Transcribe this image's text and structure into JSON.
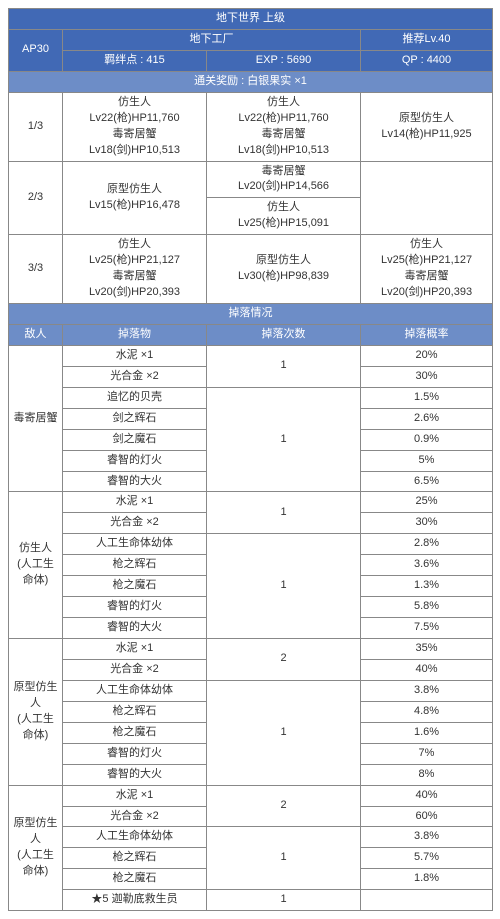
{
  "colors": {
    "header_bg": "#4169b5",
    "sub_bg": "#6d8dc7",
    "border": "#888"
  },
  "title": "地下世界 上级",
  "row2": {
    "ap": "AP30",
    "loc": "地下工厂",
    "rec": "推荐Lv.40"
  },
  "row3": {
    "bond": "羁绊点 : 415",
    "exp": "EXP : 5690",
    "qp": "QP : 4400"
  },
  "reward": "通关奖励 : 白银果实 ×1",
  "waves": [
    {
      "n": "1/3",
      "c1": "仿生人\nLv22(枪)HP11,760\n毒寄居蟹\nLv18(剑)HP10,513",
      "c2": "仿生人\nLv22(枪)HP11,760\n毒寄居蟹\nLv18(剑)HP10,513",
      "c3": "原型仿生人\nLv14(枪)HP11,925"
    },
    {
      "n": "2/3",
      "c1": "原型仿生人\nLv15(枪)HP16,478",
      "c2a": "毒寄居蟹\nLv20(剑)HP14,566",
      "c2b": "仿生人\nLv25(枪)HP15,091",
      "c3": ""
    },
    {
      "n": "3/3",
      "c1": "仿生人\nLv25(枪)HP21,127\n毒寄居蟹\nLv20(剑)HP20,393",
      "c2": "原型仿生人\nLv30(枪)HP98,839",
      "c3": "仿生人\nLv25(枪)HP21,127\n毒寄居蟹\nLv20(剑)HP20,393"
    }
  ],
  "drops_title": "掉落情况",
  "drops_hdr": {
    "enemy": "敌人",
    "item": "掉落物",
    "count": "掉落次数",
    "rate": "掉落概率"
  },
  "drops": [
    {
      "enemy": "毒寄居蟹",
      "g": [
        {
          "items": [
            "水泥 ×1",
            "光合金 ×2"
          ],
          "cnt": "1",
          "rates": [
            "20%",
            "30%"
          ]
        },
        {
          "items": [
            "追忆的贝壳",
            "剑之辉石",
            "剑之魔石",
            "睿智的灯火",
            "睿智的大火"
          ],
          "cnt": "1",
          "rates": [
            "1.5%",
            "2.6%",
            "0.9%",
            "5%",
            "6.5%"
          ]
        }
      ]
    },
    {
      "enemy": "仿生人\n(人工生命体)",
      "g": [
        {
          "items": [
            "水泥 ×1",
            "光合金 ×2"
          ],
          "cnt": "1",
          "rates": [
            "25%",
            "30%"
          ]
        },
        {
          "items": [
            "人工生命体幼体",
            "枪之辉石",
            "枪之魔石",
            "睿智的灯火",
            "睿智的大火"
          ],
          "cnt": "1",
          "rates": [
            "2.8%",
            "3.6%",
            "1.3%",
            "5.8%",
            "7.5%"
          ]
        }
      ]
    },
    {
      "enemy": "原型仿生人\n(人工生命体)",
      "g": [
        {
          "items": [
            "水泥 ×1",
            "光合金 ×2"
          ],
          "cnt": "2",
          "rates": [
            "35%",
            "40%"
          ]
        },
        {
          "items": [
            "人工生命体幼体",
            "枪之辉石",
            "枪之魔石",
            "睿智的灯火",
            "睿智的大火"
          ],
          "cnt": "1",
          "rates": [
            "3.8%",
            "4.8%",
            "1.6%",
            "7%",
            "8%"
          ]
        }
      ]
    },
    {
      "enemy": "原型仿生人\n(人工生命体)",
      "g": [
        {
          "items": [
            "水泥 ×1",
            "光合金 ×2"
          ],
          "cnt": "2",
          "rates": [
            "40%",
            "60%"
          ]
        },
        {
          "items": [
            "人工生命体幼体",
            "枪之辉石",
            "枪之魔石"
          ],
          "cnt": "1",
          "rates": [
            "3.8%",
            "5.7%",
            "1.8%"
          ]
        },
        {
          "items": [
            "★5 迦勒底救生员"
          ],
          "cnt": "1",
          "rates": [
            ""
          ]
        }
      ]
    }
  ]
}
